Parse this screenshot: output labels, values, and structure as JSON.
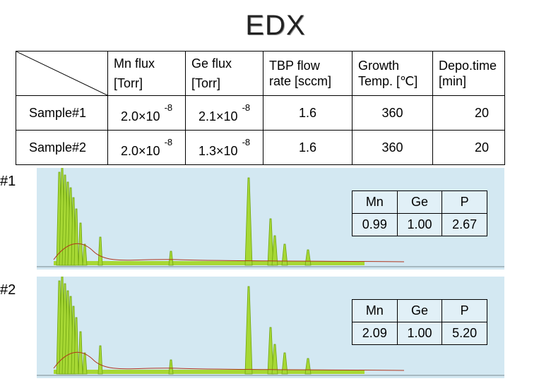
{
  "title": "EDX",
  "params_table": {
    "headers": [
      {
        "line1": "Mn flux",
        "line2": "[Torr]"
      },
      {
        "line1": "Ge flux",
        "line2": "[Torr]"
      },
      {
        "line1": "TBP flow",
        "line2": "rate [sccm]"
      },
      {
        "line1": "Growth",
        "line2": "Temp. [℃]"
      },
      {
        "line1": "Depo.time",
        "line2": "[min]"
      }
    ],
    "rows": [
      {
        "label": "Sample#1",
        "mn_flux": "2.0×10",
        "mn_exp": "-8",
        "ge_flux": "2.1×10",
        "ge_exp": "-8",
        "tbp": "1.6",
        "temp": "360",
        "time": "20"
      },
      {
        "label": "Sample#2",
        "mn_flux": "2.0×10",
        "mn_exp": "-8",
        "ge_flux": "1.3×10",
        "ge_exp": "-8",
        "tbp": "1.6",
        "temp": "360",
        "time": "20"
      }
    ]
  },
  "spectra": [
    {
      "label": "#1",
      "headers": [
        "Mn",
        "Ge",
        "P"
      ],
      "values": [
        "0.99",
        "1.00",
        "2.67"
      ]
    },
    {
      "label": "#2",
      "headers": [
        "Mn",
        "Ge",
        "P"
      ],
      "values": [
        "2.09",
        "1.00",
        "5.20"
      ]
    }
  ],
  "colors": {
    "spectrum_bg": "#d3e8f2",
    "peak_fill": "#a7d834",
    "peak_line": "#6fa410",
    "curve": "#b0361e"
  }
}
